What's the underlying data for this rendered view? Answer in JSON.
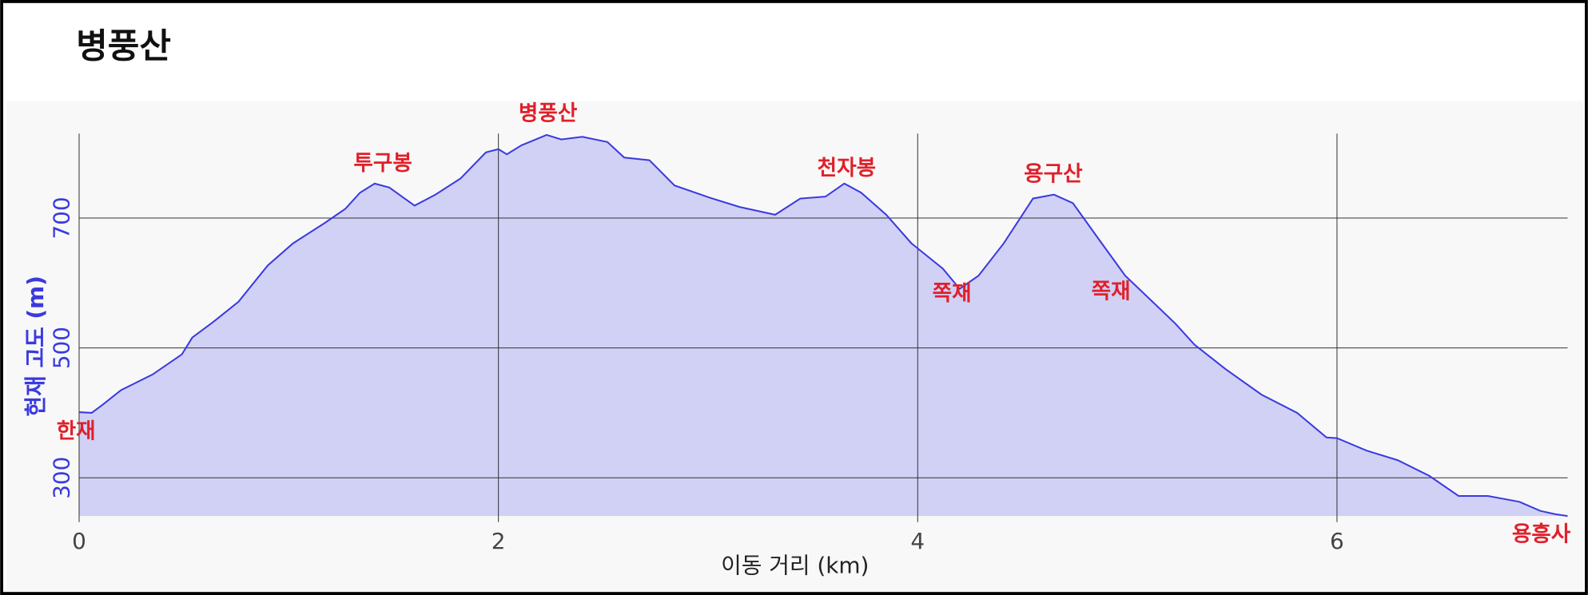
{
  "chart_data": {
    "type": "area",
    "title": "병풍산",
    "x_label": "이동 거리 (km)",
    "y_label": "현재 고도 (m)",
    "x": [
      0,
      0.06,
      0.11,
      0.2,
      0.35,
      0.49,
      0.54,
      0.64,
      0.76,
      0.9,
      1.02,
      1.17,
      1.27,
      1.34,
      1.41,
      1.48,
      1.6,
      1.7,
      1.82,
      1.94,
      2.0,
      2.04,
      2.11,
      2.23,
      2.3,
      2.4,
      2.52,
      2.6,
      2.72,
      2.84,
      3.01,
      3.15,
      3.32,
      3.44,
      3.56,
      3.65,
      3.73,
      3.85,
      3.97,
      4.12,
      4.2,
      4.29,
      4.41,
      4.55,
      4.65,
      4.74,
      4.86,
      4.99,
      5.13,
      5.23,
      5.32,
      5.47,
      5.64,
      5.81,
      5.95,
      6.0,
      6.14,
      6.29,
      6.44,
      6.58,
      6.72,
      6.87,
      6.97,
      7.04,
      7.1
    ],
    "values": [
      401,
      400,
      412,
      435,
      459,
      490,
      516,
      540,
      571,
      627,
      661,
      692,
      714,
      739,
      753,
      747,
      719,
      736,
      761,
      801,
      806,
      798,
      812,
      828,
      821,
      825,
      817,
      793,
      789,
      750,
      731,
      717,
      705,
      730,
      733,
      753,
      739,
      705,
      661,
      622,
      591,
      611,
      661,
      730,
      736,
      723,
      669,
      611,
      568,
      537,
      505,
      467,
      428,
      400,
      362,
      361,
      342,
      327,
      303,
      272,
      272,
      263,
      249,
      244,
      241
    ],
    "xlim": [
      0,
      7.1
    ],
    "ylim": [
      241,
      830
    ],
    "xticks": [
      0,
      2,
      4,
      6
    ],
    "yticks": [
      300,
      500,
      700
    ],
    "grid": true,
    "color": "#3a3ae0",
    "fill": "#d1d1f6",
    "annotations": [
      "한재",
      "투구봉",
      "병풍산",
      "천자봉",
      "쪽재",
      "용구산",
      "쪽재",
      "용흥사"
    ]
  }
}
